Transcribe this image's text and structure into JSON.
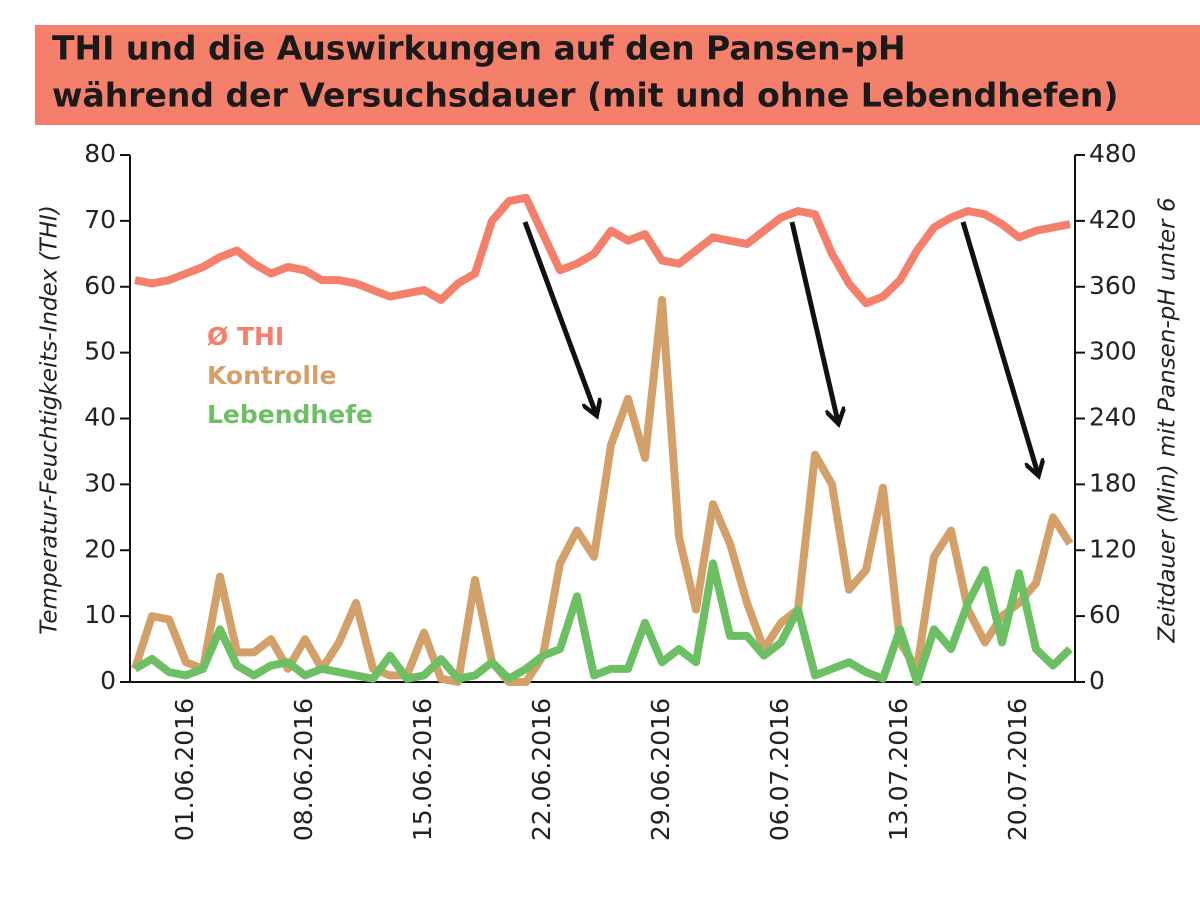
{
  "chart_data": {
    "type": "line",
    "title": [
      "THI und die Auswirkungen auf den Pansen-pH",
      "während der Versuchsdauer (mit und ohne Lebendhefen)"
    ],
    "y_label": "Temperatur-Feuchtigkeits-Index (THI)",
    "y2_label": "Zeitdauer (Min) mit Pansen-pH unter 6",
    "categories": [
      null,
      null,
      null,
      "01.06.2016",
      null,
      null,
      null,
      null,
      null,
      null,
      "08.06.2016",
      null,
      null,
      null,
      null,
      null,
      null,
      "15.06.2016",
      null,
      null,
      null,
      null,
      null,
      null,
      "22.06.2016",
      null,
      null,
      null,
      null,
      null,
      null,
      "29.06.2016",
      null,
      null,
      null,
      null,
      null,
      null,
      "06.07.2016",
      null,
      null,
      null,
      null,
      null,
      null,
      "13.07.2016",
      null,
      null,
      null,
      null,
      null,
      null,
      "20.07.2016",
      null,
      null,
      null
    ],
    "ylim": [
      0,
      80
    ],
    "yticks": [
      0,
      10,
      20,
      30,
      40,
      50,
      60,
      70,
      80
    ],
    "y2lim": [
      0,
      480
    ],
    "y2ticks": [
      0,
      60,
      120,
      180,
      240,
      300,
      360,
      420,
      480
    ],
    "series": [
      {
        "name": "Ø THI",
        "color": "#f47f6b",
        "values": [
          61,
          60.5,
          61,
          62,
          63,
          64.5,
          65.5,
          63.5,
          62,
          63,
          62.5,
          61,
          61,
          60.5,
          59.5,
          58.5,
          59,
          59.5,
          58,
          60.5,
          62,
          70,
          73,
          73.5,
          68,
          62.5,
          63.5,
          65,
          68.5,
          67,
          68,
          64,
          63.5,
          65.5,
          67.5,
          67,
          66.5,
          68.5,
          70.5,
          71.5,
          71,
          65,
          60.5,
          57.5,
          58.5,
          61,
          65.5,
          69,
          70.5,
          71.5,
          71,
          69.5,
          67.5,
          68.5,
          69,
          69.5
        ]
      },
      {
        "name": "Kontrolle",
        "color": "#d4a06a",
        "axis": "y2",
        "values": [
          12,
          60,
          57,
          18,
          12,
          96,
          27,
          27,
          39,
          12,
          39,
          12,
          36,
          72,
          12,
          6,
          6,
          45,
          3,
          0,
          93,
          18,
          0,
          0,
          24,
          108,
          138,
          114,
          216,
          258,
          204,
          348,
          132,
          66,
          162,
          126,
          72,
          30,
          54,
          66,
          207,
          180,
          84,
          102,
          177,
          36,
          12,
          114,
          138,
          66,
          36,
          60,
          72,
          90,
          150,
          126
        ]
      },
      {
        "name": "Lebendhefe",
        "color": "#6cc063",
        "axis": "y2",
        "values": [
          12,
          21,
          9,
          6,
          12,
          48,
          15,
          6,
          15,
          18,
          6,
          12,
          9,
          6,
          3,
          24,
          3,
          6,
          21,
          3,
          6,
          18,
          3,
          12,
          24,
          30,
          78,
          6,
          12,
          12,
          54,
          18,
          30,
          18,
          108,
          42,
          42,
          24,
          36,
          66,
          6,
          12,
          18,
          9,
          3,
          48,
          0,
          48,
          30,
          72,
          102,
          36,
          99,
          30,
          15,
          30
        ]
      }
    ]
  }
}
